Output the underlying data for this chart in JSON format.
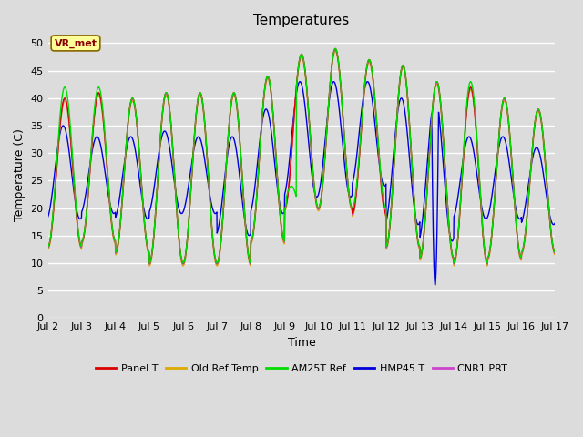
{
  "title": "Temperatures",
  "xlabel": "Time",
  "ylabel": "Temperature (C)",
  "ylim": [
    0,
    52
  ],
  "yticks": [
    0,
    5,
    10,
    15,
    20,
    25,
    30,
    35,
    40,
    45,
    50
  ],
  "n_days": 15,
  "bg_color": "#dcdcdc",
  "plot_bg_color": "#dcdcdc",
  "series_colors": {
    "Panel T": "#dd0000",
    "Old Ref Temp": "#ddaa00",
    "AM25T Ref": "#00dd00",
    "HMP45 T": "#0000dd",
    "CNR1 PRT": "#cc44cc"
  },
  "annotation_text": "VR_met",
  "grid_color": "#ffffff",
  "title_fontsize": 11,
  "label_fontsize": 9,
  "tick_fontsize": 8
}
